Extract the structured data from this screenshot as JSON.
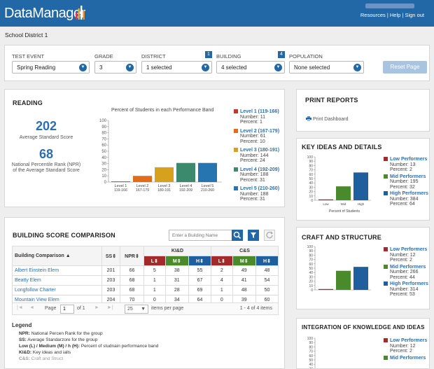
{
  "app": {
    "name": "DataManager",
    "links": [
      "Resources",
      "Help",
      "Sign out"
    ],
    "sep": "|"
  },
  "district_title": "School District 1",
  "filters": {
    "test_event": {
      "label": "TEST EVENT",
      "value": "Spring Reading"
    },
    "grade": {
      "label": "GRADE",
      "value": "3"
    },
    "district": {
      "label": "DISTRICT",
      "value": "1 selected",
      "badge": "1"
    },
    "building": {
      "label": "BUILDING",
      "value": "4 selected",
      "badge": "4"
    },
    "population": {
      "label": "POPULATION",
      "value": "None selected"
    },
    "reset_label": "Reset Page"
  },
  "reading": {
    "title": "READING",
    "avg_score": "202",
    "avg_score_label": "Average Standard Score",
    "npr": "68",
    "npr_label": "National Percentile Rank (NPR) of the Average Standard Score",
    "chart_title": "Percent of Students in each Performance Band"
  },
  "chart_data": [
    {
      "type": "bar",
      "title": "Percent of Students in each Performance Band",
      "ylim": [
        0,
        100
      ],
      "yticks": [
        0,
        10,
        20,
        30,
        40,
        50,
        60,
        70,
        80,
        90,
        100
      ],
      "categories": [
        "Level 1",
        "Level 2",
        "Level 3",
        "Level 4",
        "Level 5"
      ],
      "category_ranges": [
        "119-166",
        "167-179",
        "180-191",
        "192-209",
        "210-260"
      ],
      "values": [
        1,
        10,
        24,
        31,
        31
      ],
      "colors": [
        "#c0392b",
        "#e36c1c",
        "#d6a21e",
        "#3c8a6e",
        "#2674b0"
      ],
      "legend": [
        {
          "name": "Level 1 (119-166)",
          "number": "Number: 11",
          "percent": "Percent: 1"
        },
        {
          "name": "Level 2 (167-179)",
          "number": "Number: 61",
          "percent": "Percent: 10"
        },
        {
          "name": "Level 3 (180-191)",
          "number": "Number: 144",
          "percent": "Percent: 24"
        },
        {
          "name": "Level 4 (192-209)",
          "number": "Number: 188",
          "percent": "Percent: 31"
        },
        {
          "name": "Level 5 (210-260)",
          "number": "Number: 188",
          "percent": "Percent: 31"
        }
      ]
    },
    {
      "type": "bar",
      "title": "KEY IDEAS AND DETAILS",
      "xlabel": "Percent of Students",
      "ylim": [
        0,
        100
      ],
      "yticks": [
        0,
        10,
        20,
        30,
        40,
        50,
        60,
        70,
        80,
        90,
        100
      ],
      "categories": [
        "Low",
        "Mid",
        "High"
      ],
      "values": [
        2,
        32,
        64
      ],
      "colors": [
        "#a52a2a",
        "#4a8a2a",
        "#1f5f9e"
      ],
      "legend": [
        {
          "name": "Low Performers",
          "number": "Number: 13",
          "percent": "Percent: 2"
        },
        {
          "name": "Mid Performers",
          "number": "Number: 195",
          "percent": "Percent: 32"
        },
        {
          "name": "High Performers",
          "number": "Number: 384",
          "percent": "Percent: 64"
        }
      ]
    },
    {
      "type": "bar",
      "title": "CRAFT AND STRUCTURE",
      "ylim": [
        0,
        100
      ],
      "yticks": [
        0,
        10,
        20,
        30,
        40,
        50,
        60,
        70,
        80,
        90,
        100
      ],
      "categories": [
        "Low",
        "Mid",
        "High"
      ],
      "values": [
        2,
        44,
        53
      ],
      "colors": [
        "#a52a2a",
        "#4a8a2a",
        "#1f5f9e"
      ],
      "legend": [
        {
          "name": "Low Performers",
          "number": "Number: 12",
          "percent": "Percent: 2"
        },
        {
          "name": "Mid Performers",
          "number": "Number: 266",
          "percent": "Percent: 44"
        },
        {
          "name": "High Performers",
          "number": "Number: 314",
          "percent": "Percent: 53"
        }
      ]
    },
    {
      "type": "bar",
      "title": "INTEGRATION OF KNOWLEDGE AND IDEAS",
      "ylim": [
        0,
        100
      ],
      "yticks": [
        0,
        10,
        20,
        30,
        40,
        50,
        60,
        70,
        80,
        90,
        100
      ],
      "legend": [
        {
          "name": "Low Performers",
          "number": "Number: 12",
          "percent": "Percent: 2"
        },
        {
          "name": "Mid Performers",
          "number": "",
          "percent": ""
        }
      ]
    }
  ],
  "print": {
    "title": "PRINT REPORTS",
    "link": "Print Dashboard"
  },
  "comparison": {
    "title": "BUILDING SCORE COMPARISON",
    "search_placeholder": "Enter a Building Name",
    "headers": {
      "building": "Building Comparison",
      "ss": "SS",
      "npr": "NPR",
      "kid": "KI&D",
      "cs": "C&S",
      "l": "L",
      "m": "M",
      "h": "H"
    },
    "rows": [
      {
        "name": "Albert Einstein Elem",
        "ss": "201",
        "npr": "66",
        "kid": [
          "5",
          "38",
          "55"
        ],
        "cs": [
          "2",
          "49",
          "48"
        ]
      },
      {
        "name": "Beatty Elem",
        "ss": "203",
        "npr": "68",
        "kid": [
          "1",
          "31",
          "67"
        ],
        "cs": [
          "4",
          "41",
          "54"
        ]
      },
      {
        "name": "Longfollow Charter",
        "ss": "203",
        "npr": "68",
        "kid": [
          "1",
          "28",
          "69"
        ],
        "cs": [
          "1",
          "48",
          "50"
        ]
      },
      {
        "name": "Mountain View Elem",
        "ss": "204",
        "npr": "70",
        "kid": [
          "0",
          "34",
          "64"
        ],
        "cs": [
          "0",
          "39",
          "60"
        ]
      }
    ],
    "pager": {
      "page_label": "Page",
      "page": "1",
      "of": "of 1",
      "per_page": "25",
      "per_page_label": "items per page",
      "range": "1 - 4 of 4 items"
    }
  },
  "legend": {
    "title": "Legend",
    "lines": [
      {
        "key": "NPR:",
        "text": "National Percen Rank for the group"
      },
      {
        "key": "SS:",
        "text": "Average Standarzore for the group"
      },
      {
        "key": "Low (L) / Medium (M) / h (H):",
        "text": "Percent of studnain performance band"
      },
      {
        "key": "KI&D:",
        "text": "Key ideas and ialls"
      },
      {
        "key": "C&S:",
        "text": "Craft and Struct"
      }
    ]
  }
}
